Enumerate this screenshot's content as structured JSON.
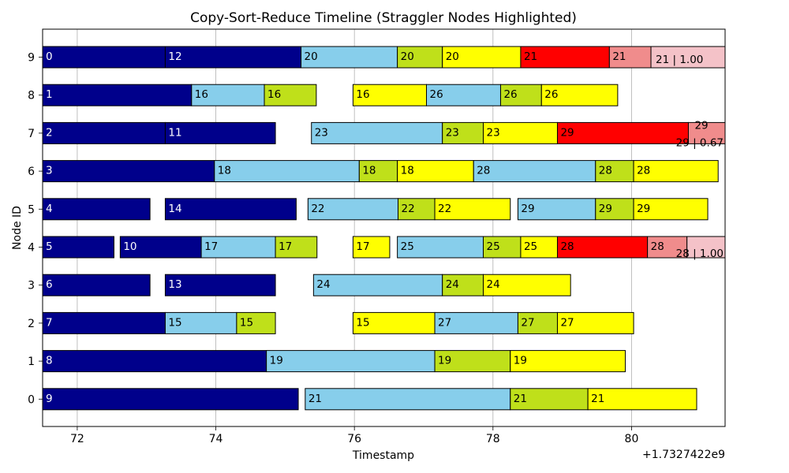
{
  "chart_data": {
    "type": "gantt",
    "title": "Copy-Sort-Reduce Timeline (Straggler Nodes Highlighted)",
    "xlabel": "Timestamp",
    "ylabel": "Node ID",
    "x_offset_label": "+1.7327422e9",
    "xlim": [
      71.5,
      81.35
    ],
    "x_ticks": [
      72,
      74,
      76,
      78,
      80
    ],
    "y_ticks": [
      0,
      1,
      2,
      3,
      4,
      5,
      6,
      7,
      8,
      9
    ],
    "straggler_nodes": [
      0,
      1
    ],
    "grid": "vertical",
    "colors": {
      "copy": "#00008b",
      "sort": "#87ceeb",
      "reduce_a": "#bfe01a",
      "reduce_b": "#ffff00",
      "straggler": "#ff0000",
      "straggler_b": "#f08c8c",
      "straggler_c": "#f4c2c8",
      "straggler_tick": "#ff0000"
    },
    "bars": [
      {
        "node": 9,
        "start": 71.5,
        "end": 73.27,
        "label": "0",
        "kind": "copy"
      },
      {
        "node": 9,
        "start": 73.27,
        "end": 75.23,
        "label": "12",
        "kind": "copy"
      },
      {
        "node": 9,
        "start": 75.23,
        "end": 76.62,
        "label": "20",
        "kind": "sort"
      },
      {
        "node": 9,
        "start": 76.62,
        "end": 77.27,
        "label": "20",
        "kind": "reduce_a"
      },
      {
        "node": 9,
        "start": 77.27,
        "end": 78.4,
        "label": "20",
        "kind": "reduce_b"
      },
      {
        "node": 9,
        "start": 78.4,
        "end": 79.68,
        "label": "21",
        "kind": "straggler"
      },
      {
        "node": 9,
        "start": 79.68,
        "end": 80.28,
        "label": "21",
        "kind": "straggler_b"
      },
      {
        "node": 9,
        "start": 80.28,
        "end": 81.35,
        "label": "21 | 1.00",
        "kind": "straggler_c",
        "label_pos": "inside-low"
      },
      {
        "node": 8,
        "start": 71.5,
        "end": 73.65,
        "label": "1",
        "kind": "copy"
      },
      {
        "node": 8,
        "start": 73.65,
        "end": 74.7,
        "label": "16",
        "kind": "sort"
      },
      {
        "node": 8,
        "start": 74.7,
        "end": 75.45,
        "label": "16",
        "kind": "reduce_a"
      },
      {
        "node": 8,
        "start": 75.98,
        "end": 77.04,
        "label": "16",
        "kind": "reduce_b"
      },
      {
        "node": 8,
        "start": 77.04,
        "end": 78.11,
        "label": "26",
        "kind": "sort"
      },
      {
        "node": 8,
        "start": 78.11,
        "end": 78.7,
        "label": "26",
        "kind": "reduce_a"
      },
      {
        "node": 8,
        "start": 78.7,
        "end": 79.8,
        "label": "26",
        "kind": "reduce_b"
      },
      {
        "node": 7,
        "start": 71.5,
        "end": 73.27,
        "label": "2",
        "kind": "copy"
      },
      {
        "node": 7,
        "start": 73.27,
        "end": 74.86,
        "label": "11",
        "kind": "copy"
      },
      {
        "node": 7,
        "start": 75.38,
        "end": 77.27,
        "label": "23",
        "kind": "sort"
      },
      {
        "node": 7,
        "start": 77.27,
        "end": 77.86,
        "label": "23",
        "kind": "reduce_a"
      },
      {
        "node": 7,
        "start": 77.86,
        "end": 78.93,
        "label": "23",
        "kind": "reduce_b"
      },
      {
        "node": 7,
        "start": 78.93,
        "end": 80.82,
        "label": "29",
        "kind": "straggler"
      },
      {
        "node": 7,
        "start": 80.82,
        "end": 81.35,
        "label": "29",
        "kind": "straggler_b",
        "label_pos": "above"
      },
      {
        "node": 7,
        "start": 81.35,
        "end": 81.35,
        "label": "29 | 0.67",
        "kind": "straggler_c",
        "label_pos": "below-end"
      },
      {
        "node": 6,
        "start": 71.5,
        "end": 73.98,
        "label": "3",
        "kind": "copy"
      },
      {
        "node": 6,
        "start": 73.98,
        "end": 76.07,
        "label": "18",
        "kind": "sort"
      },
      {
        "node": 6,
        "start": 76.07,
        "end": 76.62,
        "label": "18",
        "kind": "reduce_a"
      },
      {
        "node": 6,
        "start": 76.62,
        "end": 77.72,
        "label": "18",
        "kind": "reduce_b"
      },
      {
        "node": 6,
        "start": 77.72,
        "end": 79.48,
        "label": "28",
        "kind": "sort"
      },
      {
        "node": 6,
        "start": 79.48,
        "end": 80.03,
        "label": "28",
        "kind": "reduce_a"
      },
      {
        "node": 6,
        "start": 80.03,
        "end": 81.25,
        "label": "28",
        "kind": "reduce_b"
      },
      {
        "node": 5,
        "start": 71.5,
        "end": 73.05,
        "label": "4",
        "kind": "copy"
      },
      {
        "node": 5,
        "start": 73.27,
        "end": 75.16,
        "label": "14",
        "kind": "copy"
      },
      {
        "node": 5,
        "start": 75.33,
        "end": 76.63,
        "label": "22",
        "kind": "sort"
      },
      {
        "node": 5,
        "start": 76.63,
        "end": 77.16,
        "label": "22",
        "kind": "reduce_a"
      },
      {
        "node": 5,
        "start": 77.16,
        "end": 78.25,
        "label": "22",
        "kind": "reduce_b"
      },
      {
        "node": 5,
        "start": 78.36,
        "end": 79.48,
        "label": "29",
        "kind": "sort"
      },
      {
        "node": 5,
        "start": 79.48,
        "end": 80.03,
        "label": "29",
        "kind": "reduce_a"
      },
      {
        "node": 5,
        "start": 80.03,
        "end": 81.1,
        "label": "29",
        "kind": "reduce_b"
      },
      {
        "node": 4,
        "start": 71.5,
        "end": 72.53,
        "label": "5",
        "kind": "copy"
      },
      {
        "node": 4,
        "start": 72.62,
        "end": 73.79,
        "label": "10",
        "kind": "copy"
      },
      {
        "node": 4,
        "start": 73.79,
        "end": 74.86,
        "label": "17",
        "kind": "sort"
      },
      {
        "node": 4,
        "start": 74.86,
        "end": 75.46,
        "label": "17",
        "kind": "reduce_a"
      },
      {
        "node": 4,
        "start": 75.98,
        "end": 76.51,
        "label": "17",
        "kind": "reduce_b"
      },
      {
        "node": 4,
        "start": 76.62,
        "end": 77.86,
        "label": "25",
        "kind": "sort"
      },
      {
        "node": 4,
        "start": 77.86,
        "end": 78.4,
        "label": "25",
        "kind": "reduce_a"
      },
      {
        "node": 4,
        "start": 78.4,
        "end": 78.93,
        "label": "25",
        "kind": "reduce_b"
      },
      {
        "node": 4,
        "start": 78.93,
        "end": 80.23,
        "label": "28",
        "kind": "straggler"
      },
      {
        "node": 4,
        "start": 80.23,
        "end": 80.8,
        "label": "28",
        "kind": "straggler_b"
      },
      {
        "node": 4,
        "start": 80.8,
        "end": 81.35,
        "label": "28 | 1.00",
        "kind": "straggler_c",
        "label_pos": "inside-low-end"
      },
      {
        "node": 3,
        "start": 71.5,
        "end": 73.05,
        "label": "6",
        "kind": "copy"
      },
      {
        "node": 3,
        "start": 73.27,
        "end": 74.86,
        "label": "13",
        "kind": "copy"
      },
      {
        "node": 3,
        "start": 75.41,
        "end": 77.27,
        "label": "24",
        "kind": "sort"
      },
      {
        "node": 3,
        "start": 77.27,
        "end": 77.86,
        "label": "24",
        "kind": "reduce_a"
      },
      {
        "node": 3,
        "start": 77.86,
        "end": 79.12,
        "label": "24",
        "kind": "reduce_b"
      },
      {
        "node": 2,
        "start": 71.5,
        "end": 73.27,
        "label": "7",
        "kind": "copy"
      },
      {
        "node": 2,
        "start": 73.27,
        "end": 74.3,
        "label": "15",
        "kind": "sort"
      },
      {
        "node": 2,
        "start": 74.3,
        "end": 74.86,
        "label": "15",
        "kind": "reduce_a"
      },
      {
        "node": 2,
        "start": 75.98,
        "end": 77.16,
        "label": "15",
        "kind": "reduce_b"
      },
      {
        "node": 2,
        "start": 77.16,
        "end": 78.36,
        "label": "27",
        "kind": "sort"
      },
      {
        "node": 2,
        "start": 78.36,
        "end": 78.93,
        "label": "27",
        "kind": "reduce_a"
      },
      {
        "node": 2,
        "start": 78.93,
        "end": 80.03,
        "label": "27",
        "kind": "reduce_b"
      },
      {
        "node": 1,
        "start": 71.5,
        "end": 74.73,
        "label": "8",
        "kind": "copy"
      },
      {
        "node": 1,
        "start": 74.73,
        "end": 77.16,
        "label": "19",
        "kind": "sort"
      },
      {
        "node": 1,
        "start": 77.16,
        "end": 78.25,
        "label": "19",
        "kind": "reduce_a"
      },
      {
        "node": 1,
        "start": 78.25,
        "end": 79.91,
        "label": "19",
        "kind": "reduce_b"
      },
      {
        "node": 0,
        "start": 71.5,
        "end": 75.19,
        "label": "9",
        "kind": "copy"
      },
      {
        "node": 0,
        "start": 75.29,
        "end": 78.25,
        "label": "21",
        "kind": "sort"
      },
      {
        "node": 0,
        "start": 78.25,
        "end": 79.37,
        "label": "21",
        "kind": "reduce_a"
      },
      {
        "node": 0,
        "start": 79.37,
        "end": 80.94,
        "label": "21",
        "kind": "reduce_b"
      }
    ]
  }
}
